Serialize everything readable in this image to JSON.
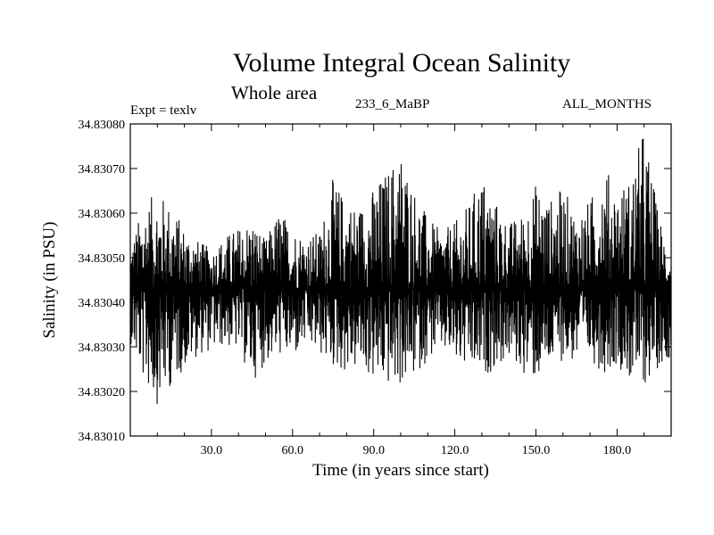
{
  "chart_data": {
    "type": "line",
    "title": "Volume Integral Ocean Salinity",
    "subtitle": "Whole area",
    "annotations": {
      "experiment": "Expt = texlv",
      "run": "233_6_MaBP",
      "period": "ALL_MONTHS"
    },
    "xlabel": "Time (in years since start)",
    "ylabel": "Salinity (in PSU)",
    "xlim": [
      0,
      200
    ],
    "ylim": [
      34.8301,
      34.8308
    ],
    "x_ticks": [
      30,
      60,
      90,
      120,
      150,
      180
    ],
    "x_tick_labels": [
      "30.0",
      "60.0",
      "90.0",
      "120.0",
      "150.0",
      "180.0"
    ],
    "y_ticks": [
      34.8301,
      34.8302,
      34.8303,
      34.8304,
      34.8305,
      34.8306,
      34.8307,
      34.8308
    ],
    "y_tick_labels": [
      "34.83010",
      "34.83020",
      "34.83030",
      "34.83040",
      "34.83050",
      "34.83060",
      "34.83070",
      "34.83080"
    ],
    "series": [
      {
        "name": "Salinity",
        "color": "#000000",
        "samples_per_year": 12,
        "baseline": 34.83043,
        "envelope_upper": [
          [
            0,
            34.83053
          ],
          [
            5,
            34.83062
          ],
          [
            10,
            34.83065
          ],
          [
            15,
            34.83062
          ],
          [
            20,
            34.83057
          ],
          [
            25,
            34.83054
          ],
          [
            30,
            34.83052
          ],
          [
            35,
            34.83055
          ],
          [
            40,
            34.83057
          ],
          [
            45,
            34.83059
          ],
          [
            50,
            34.83054
          ],
          [
            55,
            34.83061
          ],
          [
            60,
            34.83057
          ],
          [
            65,
            34.83055
          ],
          [
            70,
            34.83056
          ],
          [
            75,
            34.83068
          ],
          [
            80,
            34.83063
          ],
          [
            85,
            34.83062
          ],
          [
            90,
            34.83066
          ],
          [
            95,
            34.8307
          ],
          [
            100,
            34.83075
          ],
          [
            105,
            34.83066
          ],
          [
            110,
            34.83059
          ],
          [
            115,
            34.83056
          ],
          [
            120,
            34.83058
          ],
          [
            125,
            34.83062
          ],
          [
            130,
            34.83069
          ],
          [
            135,
            34.83063
          ],
          [
            140,
            34.83058
          ],
          [
            145,
            34.8306
          ],
          [
            150,
            34.83067
          ],
          [
            155,
            34.83063
          ],
          [
            160,
            34.83066
          ],
          [
            165,
            34.8306
          ],
          [
            170,
            34.83063
          ],
          [
            175,
            34.83071
          ],
          [
            180,
            34.83066
          ],
          [
            185,
            34.83068
          ],
          [
            190,
            34.8308
          ],
          [
            195,
            34.83061
          ],
          [
            200,
            34.8305
          ]
        ],
        "envelope_lower": [
          [
            0,
            34.83031
          ],
          [
            5,
            34.83022
          ],
          [
            10,
            34.83017
          ],
          [
            15,
            34.83021
          ],
          [
            20,
            34.83025
          ],
          [
            25,
            34.83028
          ],
          [
            30,
            34.83029
          ],
          [
            35,
            34.8303
          ],
          [
            40,
            34.83029
          ],
          [
            45,
            34.83022
          ],
          [
            50,
            34.83026
          ],
          [
            55,
            34.83028
          ],
          [
            60,
            34.83027
          ],
          [
            65,
            34.8303
          ],
          [
            70,
            34.83028
          ],
          [
            75,
            34.83025
          ],
          [
            80,
            34.83024
          ],
          [
            85,
            34.83025
          ],
          [
            90,
            34.83022
          ],
          [
            95,
            34.83021
          ],
          [
            100,
            34.83021
          ],
          [
            105,
            34.83023
          ],
          [
            110,
            34.83027
          ],
          [
            115,
            34.83029
          ],
          [
            120,
            34.83026
          ],
          [
            125,
            34.83024
          ],
          [
            130,
            34.83023
          ],
          [
            135,
            34.83025
          ],
          [
            140,
            34.83027
          ],
          [
            145,
            34.83024
          ],
          [
            150,
            34.83022
          ],
          [
            155,
            34.83025
          ],
          [
            160,
            34.83027
          ],
          [
            165,
            34.83026
          ],
          [
            170,
            34.83027
          ],
          [
            175,
            34.83024
          ],
          [
            180,
            34.83026
          ],
          [
            185,
            34.83022
          ],
          [
            190,
            34.83021
          ],
          [
            195,
            34.83025
          ],
          [
            200,
            34.83028
          ]
        ]
      }
    ]
  }
}
